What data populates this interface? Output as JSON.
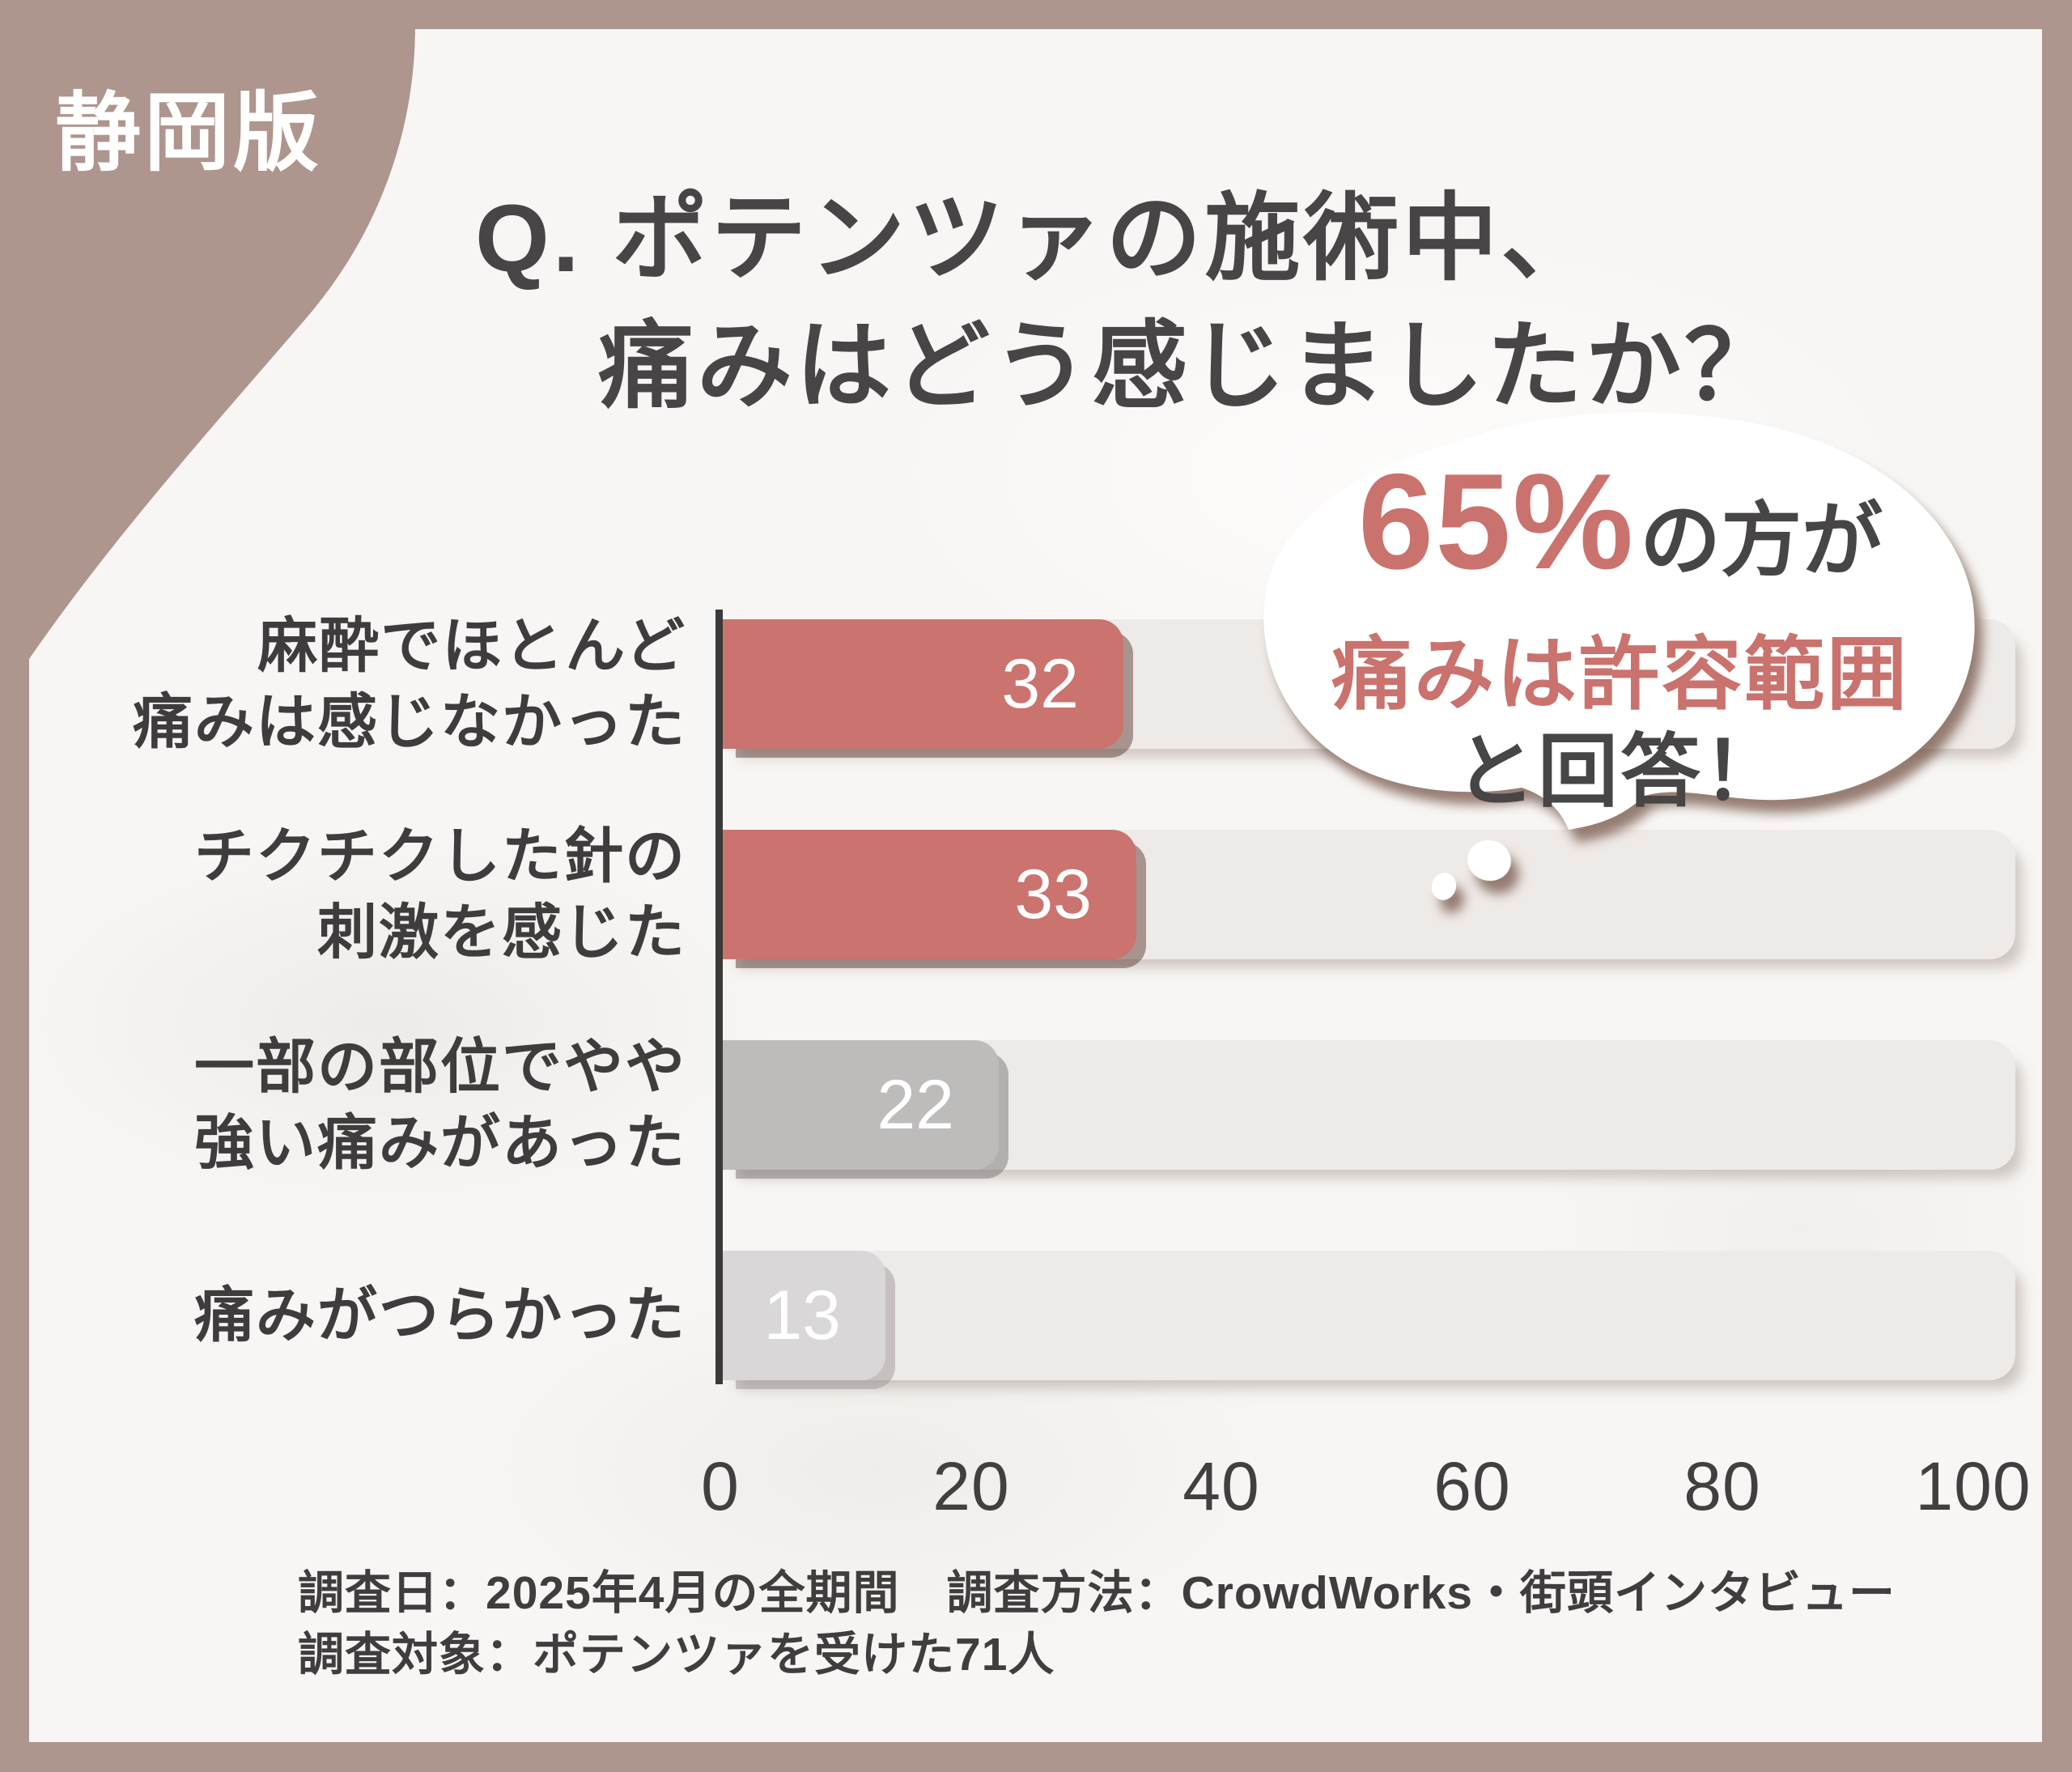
{
  "badge": {
    "label": "静岡版"
  },
  "title": {
    "line1": "Q. ポテンツァの施術中、",
    "line2": "痛みはどう感じましたか？"
  },
  "bubble": {
    "percent": "65%",
    "percent_suffix": "の方が",
    "highlight": "痛みは許容範囲",
    "answer": "と回答！"
  },
  "chart_data": {
    "type": "bar",
    "orientation": "horizontal",
    "categories": [
      "麻酔でほとんど痛みは感じなかった",
      "チクチクした針の刺激を感じた",
      "一部の部位でやや強い痛みがあった",
      "痛みがつらかった"
    ],
    "values": [
      32,
      33,
      22,
      13
    ],
    "rows": [
      {
        "lines": [
          "麻酔でほとんど",
          "痛みは感じなかった"
        ]
      },
      {
        "lines": [
          "チクチクした針の",
          "刺激を感じた"
        ]
      },
      {
        "lines": [
          "一部の部位でやや",
          "強い痛みがあった"
        ]
      },
      {
        "lines": [
          "痛みがつらかった"
        ]
      }
    ],
    "xlabel": "",
    "ylabel": "",
    "xlim": [
      0,
      100
    ],
    "x_ticks": [
      0,
      20,
      40,
      60,
      80,
      100
    ],
    "grid": false,
    "legend": null,
    "bar_colors": [
      "#cb736e",
      "#cb736e",
      "#bebbbb",
      "#d9d7d7"
    ],
    "bar_shadow_colors": [
      "rgba(96,62,55,0.50)",
      "rgba(96,62,55,0.50)",
      "rgba(120,115,115,0.50)",
      "rgba(148,144,144,0.45)"
    ],
    "track_color": "#eeeae7",
    "axis_color": "#3a3a3a"
  },
  "footer": {
    "line1": "調査日：2025年4月の全期間　調査方法：CrowdWorks・街頭インタビュー",
    "line2": "調査対象：ポテンツァを受けた71人"
  },
  "colors": {
    "frame": "#ae958d",
    "card": "#f8f6f4",
    "accent": "#ca726d",
    "text_dark": "#474545",
    "bubble_fill": "#ffffff",
    "bar_value_text": "#ffffff"
  }
}
